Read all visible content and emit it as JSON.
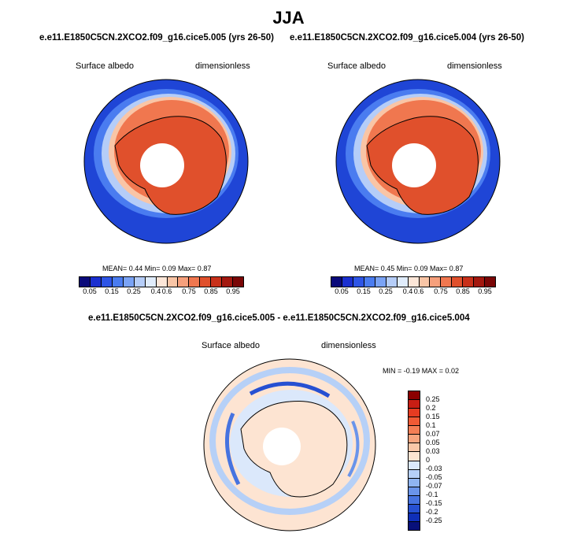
{
  "main_title": "JJA",
  "panels": [
    {
      "title": "e.e11.E1850C5CN.2XCO2.f09_g16.cice5.005 (yrs 26-50)",
      "left_label": "Surface albedo",
      "right_label": "dimensionless",
      "stats": "MEAN=  0.44  Min=  0.09  Max=  0.87"
    },
    {
      "title": "e.e11.E1850C5CN.2XCO2.f09_g16.cice5.004 (yrs 26-50)",
      "left_label": "Surface albedo",
      "right_label": "dimensionless",
      "stats": "MEAN=  0.45  Min=  0.09  Max=  0.87"
    }
  ],
  "abs_colorbar": {
    "colors": [
      "#0a0a7a",
      "#1a2fd0",
      "#2e55e6",
      "#4a7cf0",
      "#7aa3f5",
      "#b5cdf8",
      "#e0ecfb",
      "#fce6d8",
      "#f9c5a6",
      "#f6a07c",
      "#f0774f",
      "#e0502c",
      "#c8301a",
      "#a3180f",
      "#7a0606"
    ],
    "tick_labels": [
      "0.05",
      "0.15",
      "0.25",
      "0.4",
      "0.6",
      "0.75",
      "0.85",
      "0.95"
    ]
  },
  "diff_panel": {
    "title": "e.e11.E1850C5CN.2XCO2.f09_g16.cice5.005 - e.e11.E1850C5CN.2XCO2.f09_g16.cice5.004",
    "left_label": "Surface albedo",
    "right_label": "dimensionless",
    "stats": "MIN =  -0.19 MAX =   0.02"
  },
  "diff_colorbar": {
    "colors": [
      "#8b0000",
      "#c81e14",
      "#e63b21",
      "#f05a35",
      "#f47e55",
      "#f8a47e",
      "#fbc7a8",
      "#fde4d2",
      "#dbe8fb",
      "#b6d0f7",
      "#8fb4f1",
      "#6a94ea",
      "#4673e0",
      "#2650d2",
      "#0f2fb8",
      "#08107a"
    ],
    "tick_labels": [
      "0.25",
      "0.2",
      "0.15",
      "0.1",
      "0.07",
      "0.05",
      "0.03",
      "0",
      "-0.03",
      "-0.05",
      "-0.07",
      "-0.1",
      "-0.15",
      "-0.2",
      "-0.25"
    ]
  }
}
